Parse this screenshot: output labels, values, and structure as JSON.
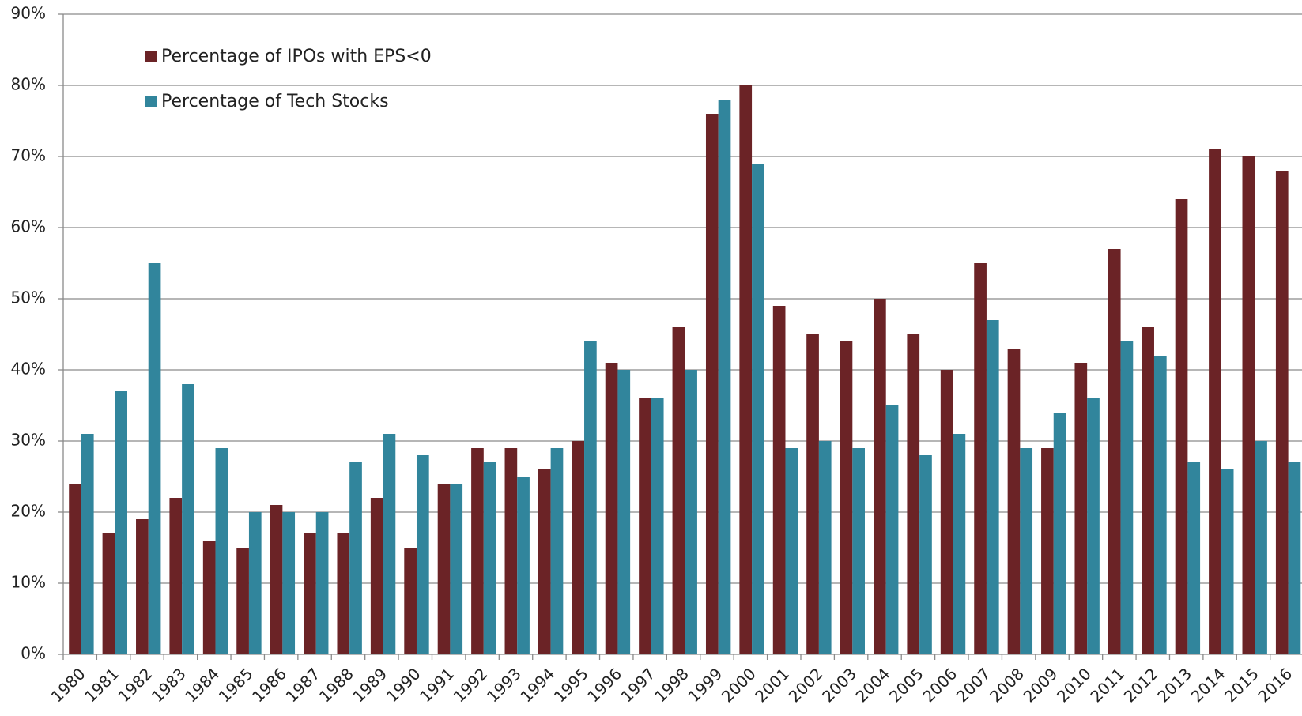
{
  "chart_data": {
    "type": "bar",
    "categories": [
      "1980",
      "1981",
      "1982",
      "1983",
      "1984",
      "1985",
      "1986",
      "1987",
      "1988",
      "1989",
      "1990",
      "1991",
      "1992",
      "1993",
      "1994",
      "1995",
      "1996",
      "1997",
      "1998",
      "1999",
      "2000",
      "2001",
      "2002",
      "2003",
      "2004",
      "2005",
      "2006",
      "2007",
      "2008",
      "2009",
      "2010",
      "2011",
      "2012",
      "2013",
      "2014",
      "2015",
      "2016"
    ],
    "series": [
      {
        "name": "Percentage of IPOs with EPS<0",
        "color": "#6b2326",
        "values": [
          24,
          17,
          19,
          22,
          16,
          15,
          21,
          17,
          17,
          22,
          15,
          24,
          29,
          29,
          26,
          30,
          41,
          36,
          46,
          76,
          80,
          49,
          45,
          44,
          50,
          45,
          40,
          55,
          43,
          29,
          41,
          57,
          46,
          64,
          71,
          70,
          68
        ]
      },
      {
        "name": "Percentage of Tech Stocks",
        "color": "#31859c",
        "values": [
          31,
          37,
          55,
          38,
          29,
          20,
          20,
          20,
          27,
          31,
          28,
          24,
          27,
          25,
          29,
          44,
          40,
          36,
          40,
          78,
          69,
          29,
          30,
          29,
          35,
          28,
          31,
          47,
          29,
          34,
          36,
          44,
          42,
          27,
          26,
          30,
          27
        ]
      }
    ],
    "ylim": [
      0,
      90
    ],
    "yticks": [
      {
        "value": 0,
        "label": "0%"
      },
      {
        "value": 10,
        "label": "10%"
      },
      {
        "value": 20,
        "label": "20%"
      },
      {
        "value": 30,
        "label": "30%"
      },
      {
        "value": 40,
        "label": "40%"
      },
      {
        "value": 50,
        "label": "50%"
      },
      {
        "value": 60,
        "label": "60%"
      },
      {
        "value": 70,
        "label": "70%"
      },
      {
        "value": 80,
        "label": "80%"
      },
      {
        "value": 90,
        "label": "90%"
      }
    ],
    "grid": true,
    "legend": "top-left"
  }
}
